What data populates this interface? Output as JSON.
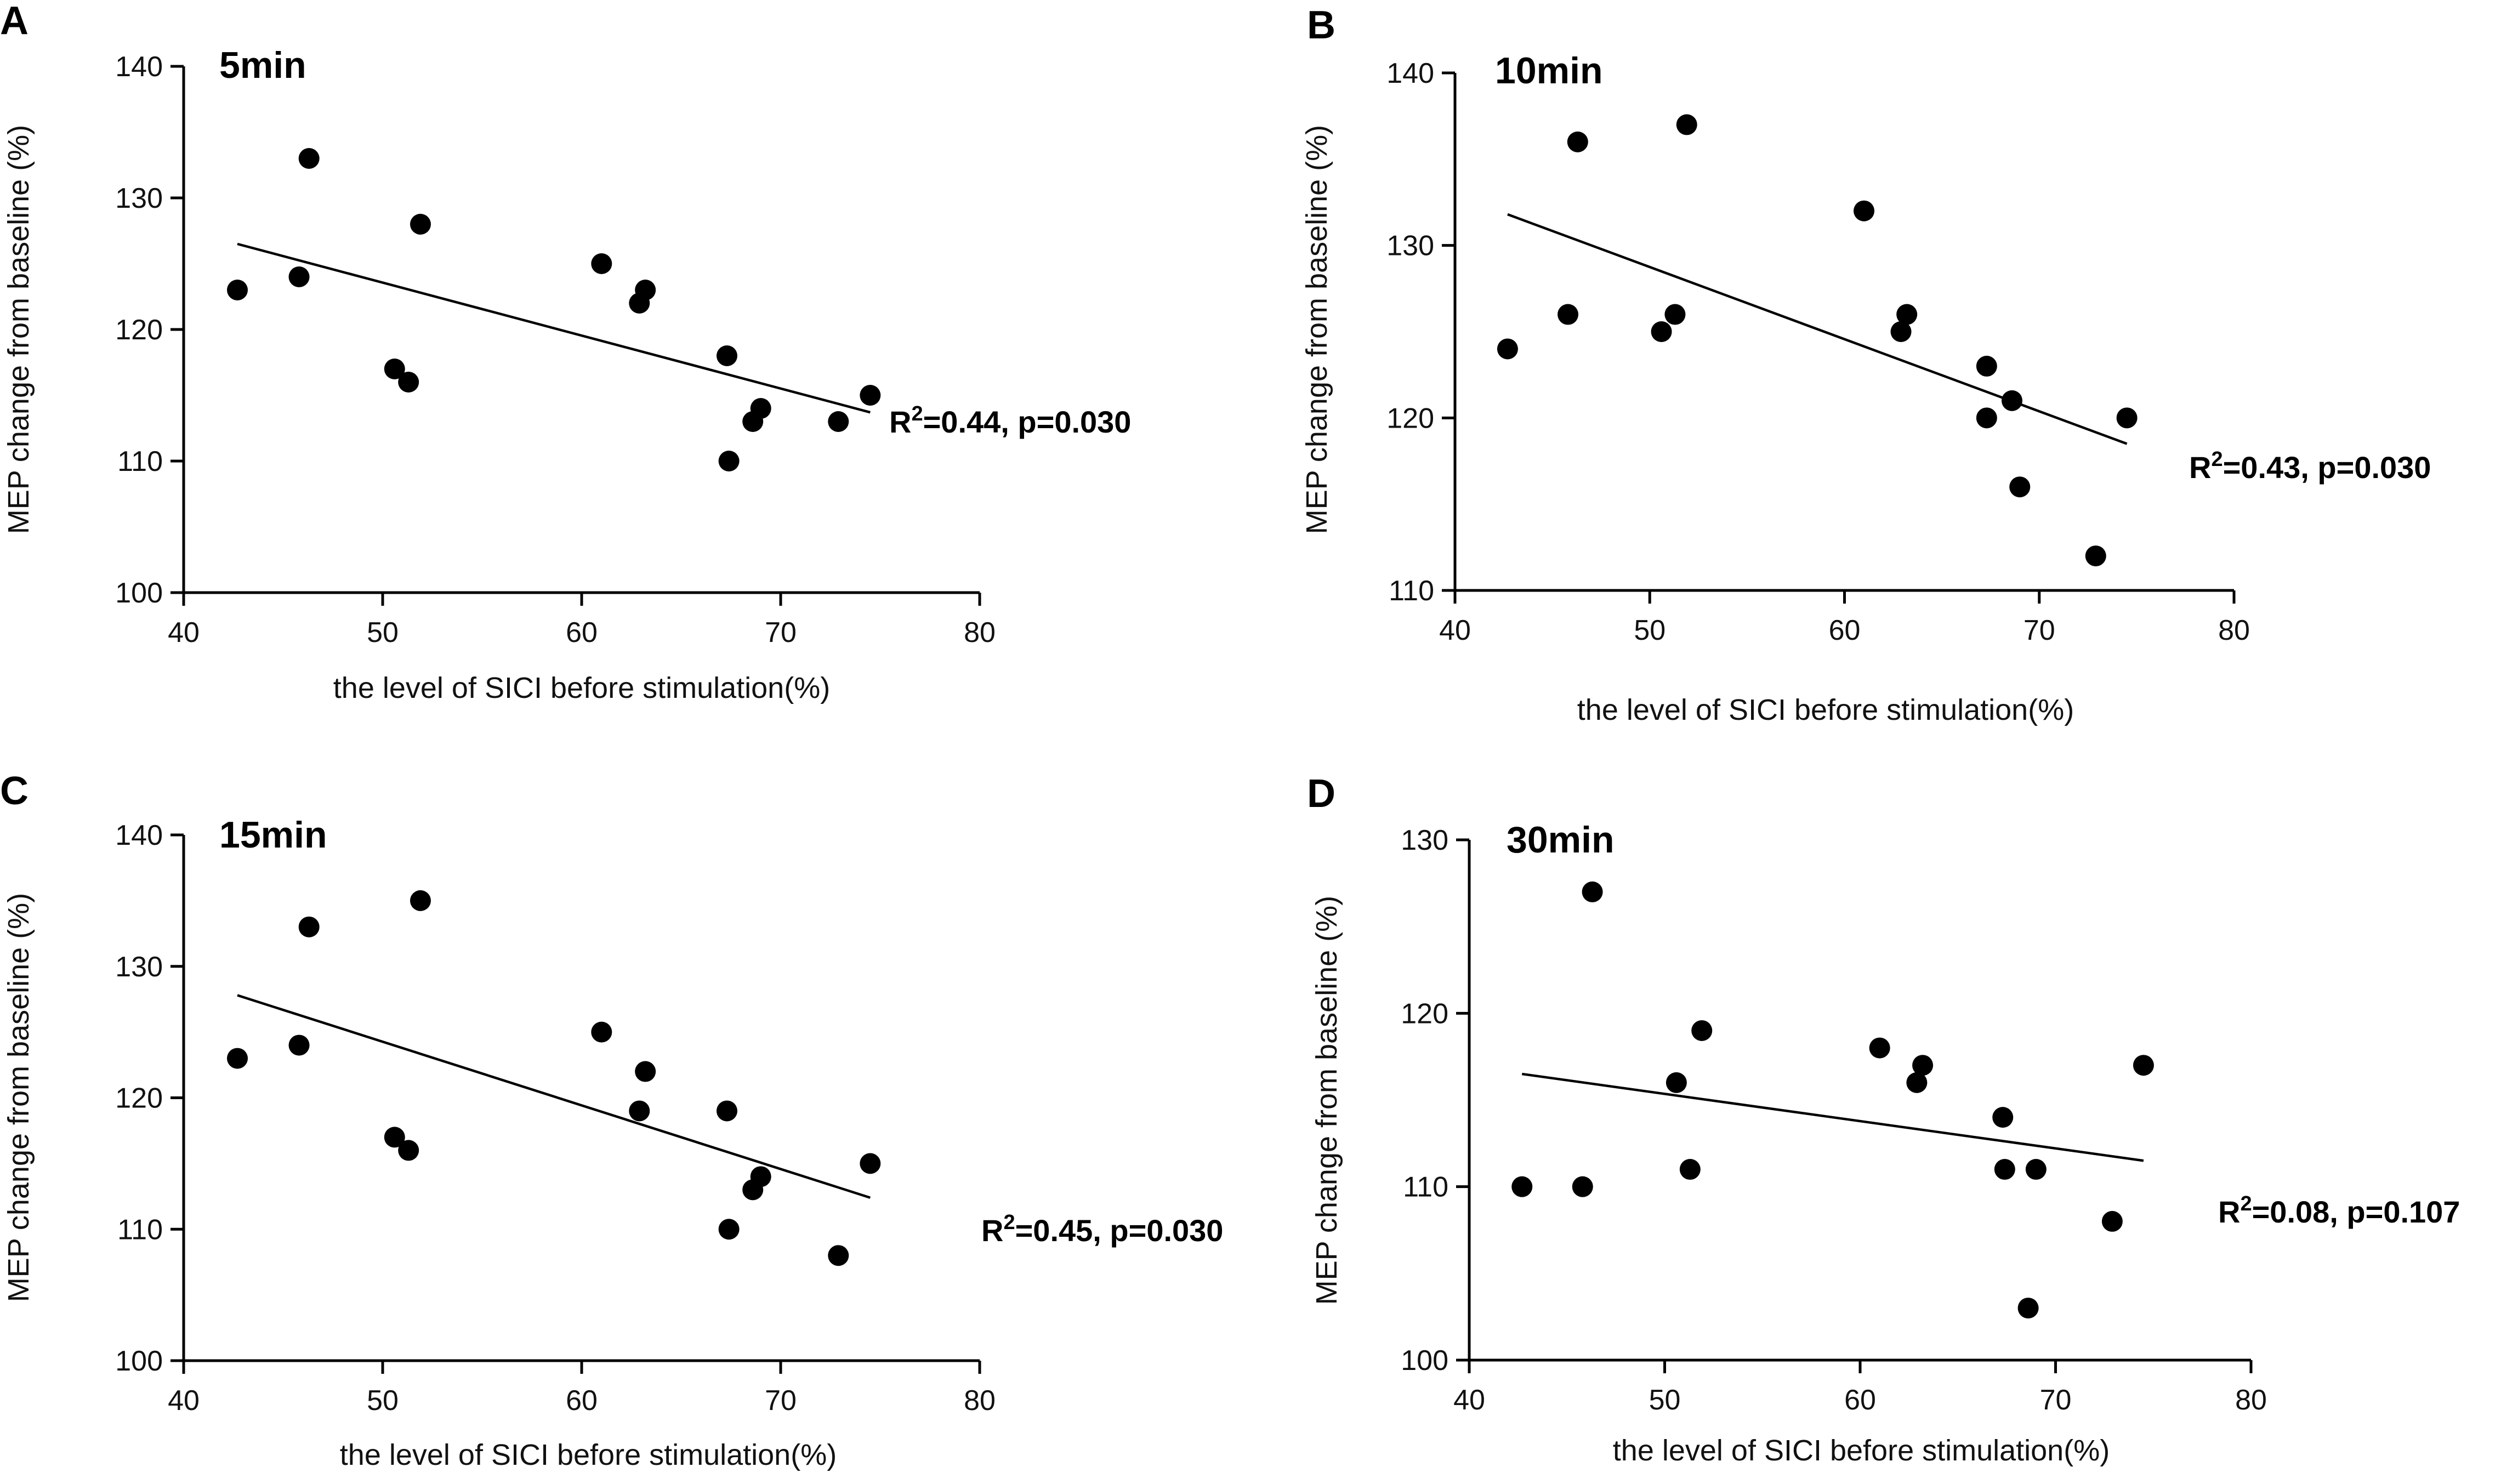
{
  "chart_data": [
    {
      "type": "scatter",
      "panel": "A",
      "title": "5min",
      "xlabel": "the level of SICI before stimulation(%)",
      "ylabel": "MEP change from baseline (%)",
      "xlim": [
        40,
        80
      ],
      "ylim": [
        100,
        140
      ],
      "xticks": [
        40,
        50,
        60,
        70,
        80
      ],
      "yticks": [
        100,
        110,
        120,
        130,
        140
      ],
      "points": [
        {
          "x": 42.7,
          "y": 123
        },
        {
          "x": 45.8,
          "y": 124
        },
        {
          "x": 46.3,
          "y": 133
        },
        {
          "x": 50.6,
          "y": 117
        },
        {
          "x": 51.3,
          "y": 116
        },
        {
          "x": 51.9,
          "y": 128
        },
        {
          "x": 61.0,
          "y": 125
        },
        {
          "x": 62.9,
          "y": 122
        },
        {
          "x": 63.2,
          "y": 123
        },
        {
          "x": 67.3,
          "y": 118
        },
        {
          "x": 67.4,
          "y": 110
        },
        {
          "x": 68.6,
          "y": 113
        },
        {
          "x": 69.0,
          "y": 114
        },
        {
          "x": 72.9,
          "y": 113
        },
        {
          "x": 74.5,
          "y": 115
        }
      ],
      "fit_line": {
        "x": [
          42.7,
          74.5
        ],
        "y": [
          126.5,
          113.7
        ]
      },
      "r2": "0.44",
      "stat_tail": "=0.44, p=0.030"
    },
    {
      "type": "scatter",
      "panel": "B",
      "title": "10min",
      "xlabel": "the level of SICI before stimulation(%)",
      "ylabel": "MEP change from baseline (%)",
      "xlim": [
        40,
        80
      ],
      "ylim": [
        110,
        140
      ],
      "xticks": [
        40,
        50,
        60,
        70,
        80
      ],
      "yticks": [
        110,
        120,
        130,
        140
      ],
      "points": [
        {
          "x": 42.7,
          "y": 124
        },
        {
          "x": 45.8,
          "y": 126
        },
        {
          "x": 46.3,
          "y": 136
        },
        {
          "x": 50.6,
          "y": 125
        },
        {
          "x": 51.3,
          "y": 126
        },
        {
          "x": 51.9,
          "y": 137
        },
        {
          "x": 61.0,
          "y": 132
        },
        {
          "x": 62.9,
          "y": 125
        },
        {
          "x": 63.2,
          "y": 126
        },
        {
          "x": 67.3,
          "y": 123
        },
        {
          "x": 67.3,
          "y": 120
        },
        {
          "x": 68.6,
          "y": 121
        },
        {
          "x": 69.0,
          "y": 116
        },
        {
          "x": 72.9,
          "y": 112
        },
        {
          "x": 74.5,
          "y": 120
        }
      ],
      "fit_line": {
        "x": [
          42.7,
          74.5
        ],
        "y": [
          131.8,
          118.5
        ]
      },
      "r2": "0.43",
      "stat_tail": "=0.43, p=0.030"
    },
    {
      "type": "scatter",
      "panel": "C",
      "title": "15min",
      "xlabel": "the level of SICI before stimulation(%)",
      "ylabel": "MEP change from baseline (%)",
      "xlim": [
        40,
        80
      ],
      "ylim": [
        100,
        140
      ],
      "xticks": [
        40,
        50,
        60,
        70,
        80
      ],
      "yticks": [
        100,
        110,
        120,
        130,
        140
      ],
      "points": [
        {
          "x": 42.7,
          "y": 123
        },
        {
          "x": 45.8,
          "y": 124
        },
        {
          "x": 46.3,
          "y": 133
        },
        {
          "x": 50.6,
          "y": 117
        },
        {
          "x": 51.3,
          "y": 116
        },
        {
          "x": 51.9,
          "y": 135
        },
        {
          "x": 61.0,
          "y": 125
        },
        {
          "x": 62.9,
          "y": 119
        },
        {
          "x": 63.2,
          "y": 122
        },
        {
          "x": 67.3,
          "y": 119
        },
        {
          "x": 67.4,
          "y": 110
        },
        {
          "x": 68.6,
          "y": 113
        },
        {
          "x": 69.0,
          "y": 114
        },
        {
          "x": 72.9,
          "y": 108
        },
        {
          "x": 74.5,
          "y": 115
        }
      ],
      "fit_line": {
        "x": [
          42.7,
          74.5
        ],
        "y": [
          127.8,
          112.4
        ]
      },
      "r2": "0.45",
      "stat_tail": "=0.45, p=0.030"
    },
    {
      "type": "scatter",
      "panel": "D",
      "title": "30min",
      "xlabel": "the level of SICI before stimulation(%)",
      "ylabel": "MEP change from baseline (%)",
      "xlim": [
        40,
        80
      ],
      "ylim": [
        100,
        130
      ],
      "xticks": [
        40,
        50,
        60,
        70,
        80
      ],
      "yticks": [
        100,
        110,
        120,
        130
      ],
      "points": [
        {
          "x": 42.7,
          "y": 110
        },
        {
          "x": 45.8,
          "y": 110
        },
        {
          "x": 46.3,
          "y": 127
        },
        {
          "x": 50.6,
          "y": 116
        },
        {
          "x": 51.3,
          "y": 111
        },
        {
          "x": 51.9,
          "y": 119
        },
        {
          "x": 61.0,
          "y": 118
        },
        {
          "x": 62.9,
          "y": 116
        },
        {
          "x": 63.2,
          "y": 117
        },
        {
          "x": 67.3,
          "y": 114
        },
        {
          "x": 67.4,
          "y": 111
        },
        {
          "x": 68.6,
          "y": 103
        },
        {
          "x": 69.0,
          "y": 111
        },
        {
          "x": 72.9,
          "y": 108
        },
        {
          "x": 74.5,
          "y": 117
        }
      ],
      "fit_line": {
        "x": [
          42.7,
          74.5
        ],
        "y": [
          116.5,
          111.5
        ]
      },
      "r2": "0.08",
      "stat_tail": "=0.08, p=0.107"
    }
  ],
  "labels": {
    "r": "R",
    "sup": "2"
  }
}
